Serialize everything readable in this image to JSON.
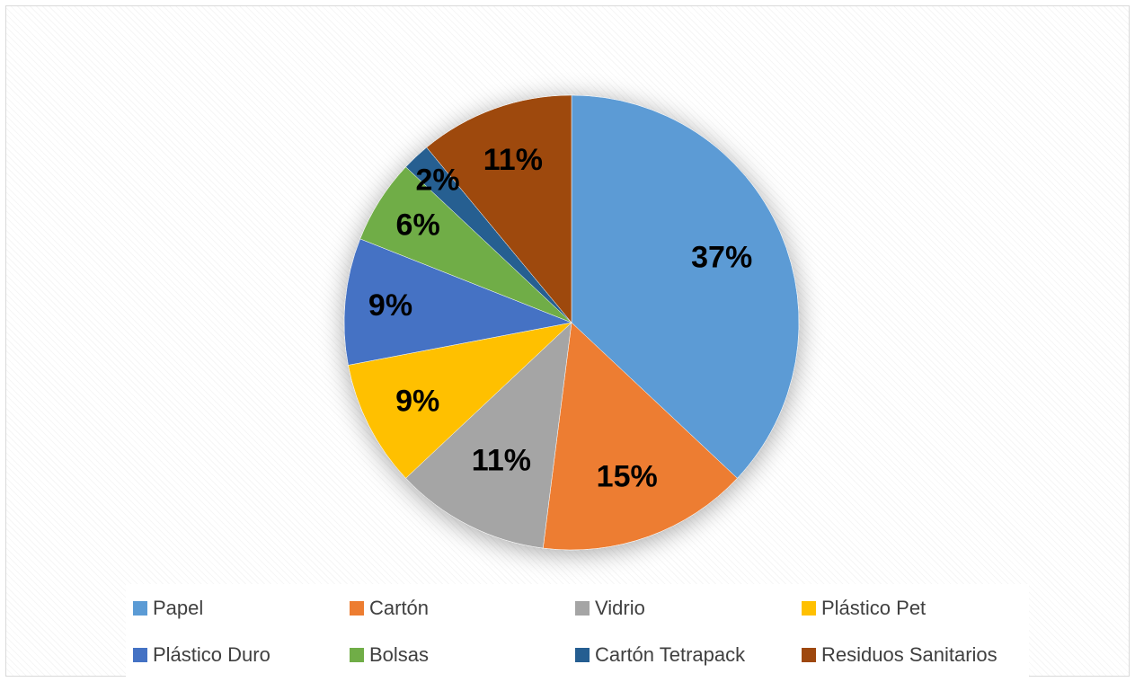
{
  "chart_data": {
    "type": "pie",
    "categories": [
      "Papel",
      "Cartón",
      "Vidrio",
      "Plástico Pet",
      "Plástico Duro",
      "Bolsas",
      "Cartón Tetrapack",
      "Residuos Sanitarios"
    ],
    "values": [
      37,
      15,
      11,
      9,
      9,
      6,
      2,
      11
    ],
    "data_labels": [
      "37%",
      "15%",
      "11%",
      "9%",
      "9%",
      "6%",
      "2%",
      "11%"
    ],
    "colors": [
      "#5b9bd5",
      "#ed7d31",
      "#a5a5a5",
      "#ffc000",
      "#4472c4",
      "#70ad47",
      "#255e91",
      "#9e480e"
    ],
    "start_angle_deg": 0,
    "direction": "clockwise",
    "legend_position": "bottom",
    "title": ""
  }
}
